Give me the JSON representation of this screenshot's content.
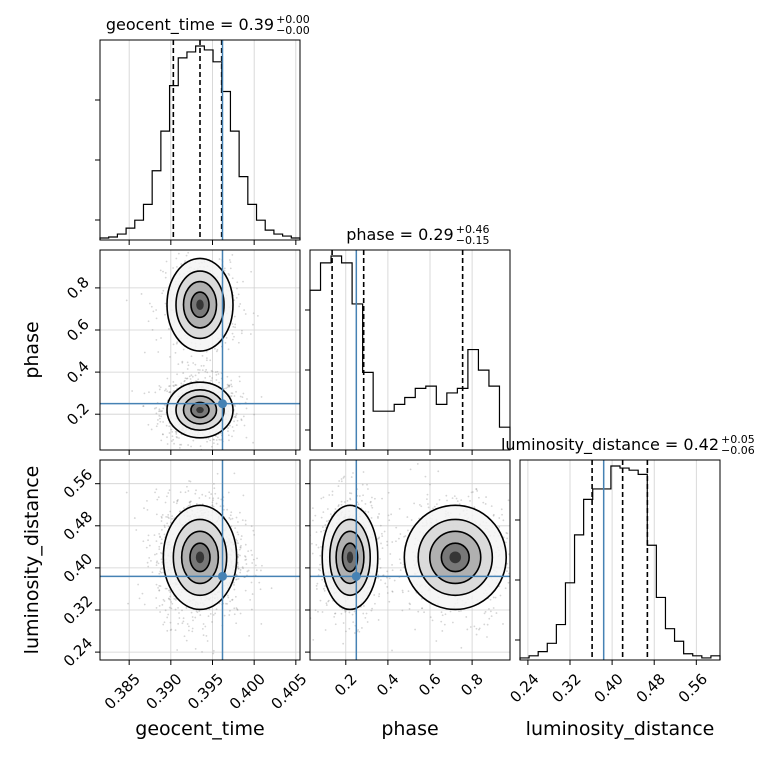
{
  "chart_data": {
    "type": "corner",
    "params": [
      "geocent_time",
      "phase",
      "luminosity_distance"
    ],
    "axis_labels": [
      "geocent_time",
      "phase",
      "luminosity_distance"
    ],
    "titles": [
      {
        "param": "geocent_time",
        "text": "geocent_time = 0.39",
        "sup": "+0.00",
        "sub": "−0.00"
      },
      {
        "param": "phase",
        "text": "phase = 0.29",
        "sup": "+0.46",
        "sub": "−0.15"
      },
      {
        "param": "luminosity_distance",
        "text": "luminosity_distance = 0.42",
        "sup": "+0.05",
        "sub": "−0.06"
      }
    ],
    "ranges": {
      "geocent_time": [
        0.3815,
        0.4055
      ],
      "phase": [
        0.03,
        0.98
      ],
      "luminosity_distance": [
        0.225,
        0.605
      ]
    },
    "ticks": {
      "geocent_time": [
        0.385,
        0.39,
        0.395,
        0.4,
        0.405
      ],
      "phase": [
        0.2,
        0.4,
        0.6,
        0.8
      ],
      "luminosity_distance": [
        0.24,
        0.32,
        0.4,
        0.48,
        0.56
      ]
    },
    "tick_labels": {
      "geocent_time": [
        "0.385",
        "0.390",
        "0.395",
        "0.400",
        "0.405"
      ],
      "phase": [
        "0.2",
        "0.4",
        "0.6",
        "0.8"
      ],
      "luminosity_distance": [
        "0.24",
        "0.32",
        "0.40",
        "0.48",
        "0.56"
      ]
    },
    "truths": {
      "geocent_time": 0.3962,
      "phase": 0.25,
      "luminosity_distance": 0.384
    },
    "truth_color": "#4682b4",
    "quantiles": {
      "geocent_time": [
        0.3903,
        0.3935,
        0.3961
      ],
      "phase": [
        0.135,
        0.285,
        0.755
      ],
      "luminosity_distance": [
        0.362,
        0.42,
        0.467
      ]
    },
    "histograms": {
      "geocent_time": [
        1,
        1.5,
        3,
        6,
        10,
        18,
        35,
        55,
        78,
        92,
        95,
        98,
        96,
        90,
        75,
        55,
        32,
        18,
        10,
        5,
        3,
        2,
        1
      ],
      "phase": [
        70,
        82,
        85,
        82,
        64,
        34,
        17,
        17,
        20,
        23,
        27,
        28,
        20,
        25,
        27,
        44,
        35,
        28,
        10
      ],
      "luminosity_distance": [
        1,
        2,
        4,
        8,
        17,
        37,
        60,
        77,
        82,
        82,
        93,
        92,
        91,
        89,
        55,
        30,
        15,
        9,
        3,
        2,
        1,
        2
      ]
    },
    "grid": true
  }
}
